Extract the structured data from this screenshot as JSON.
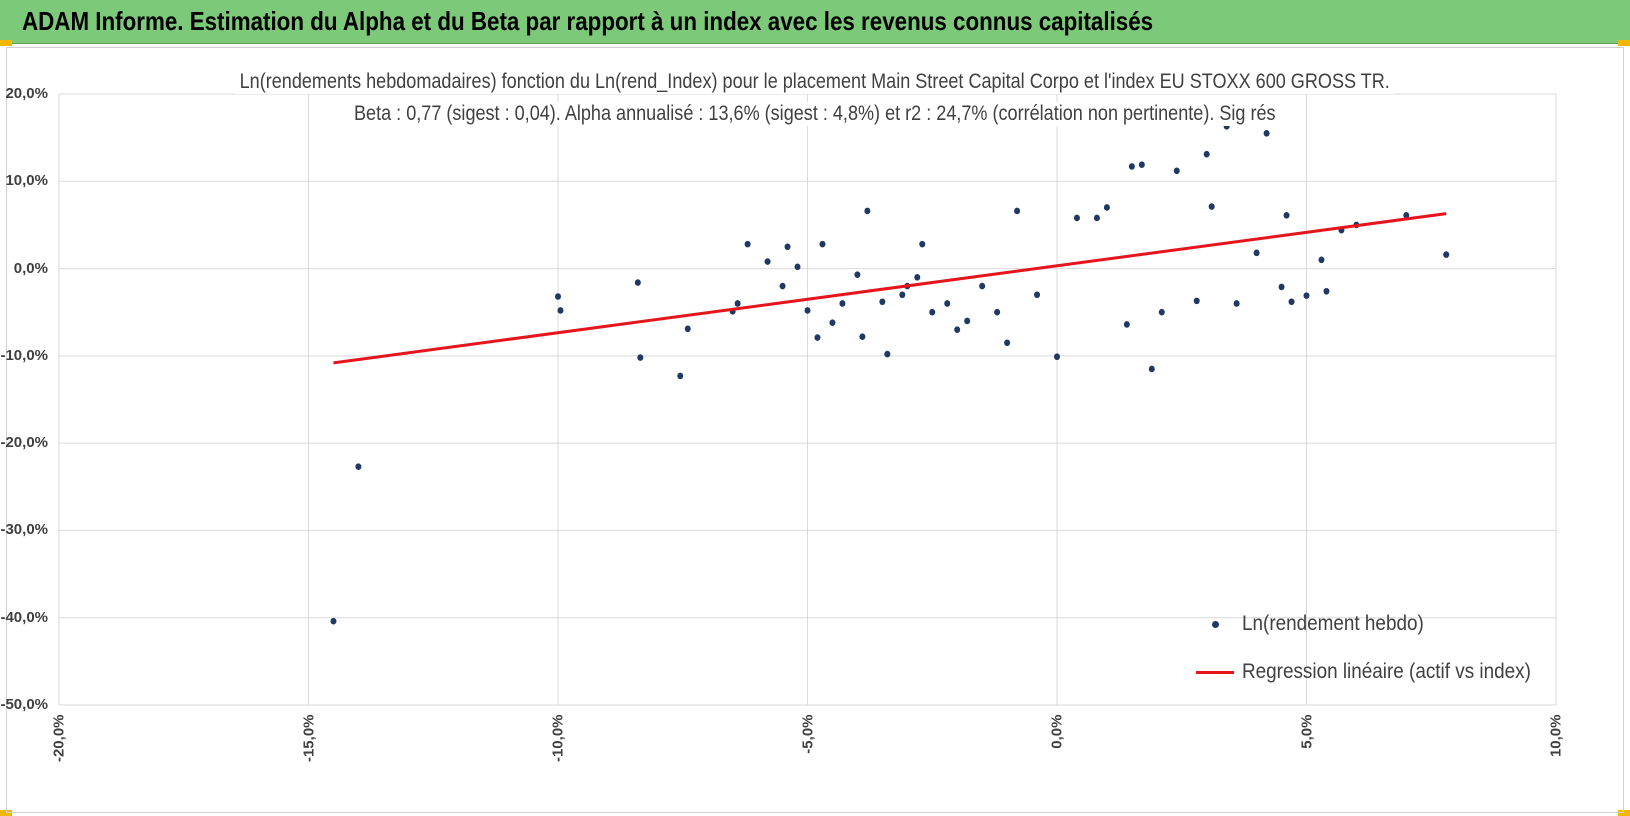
{
  "banner": {
    "title": "ADAM Informe. Estimation du Alpha et du Beta par rapport à un index avec les revenus connus capitalisés"
  },
  "colors": {
    "banner": "#7dc97a",
    "corner": "#f2b800",
    "points": "#203864",
    "regression": "#e8141b",
    "grid": "#d9d9d9"
  },
  "chart_data": {
    "type": "scatter",
    "title": "Ln(rendements hebdomadaires) fonction du Ln(rend_Index) pour le placement Main Street Capital Corpo et l'index EU STOXX 600 GROSS TR.",
    "subtitle": "Beta : 0,77 (sigest : 0,04). Alpha annualisé : 13,6% (sigest : 4,8%) et r2 : 24,7% (corrélation non pertinente). Sig rés",
    "xlabel": "",
    "ylabel": "",
    "xlim": [
      -0.2,
      0.1
    ],
    "ylim": [
      -0.5,
      0.2
    ],
    "grid": true,
    "legend_position": "bottom-right",
    "x_tick_labels": [
      "-20,0%",
      "-15,0%",
      "-10,0%",
      "-5,0%",
      "0,0%",
      "5,0%",
      "10,0%"
    ],
    "x_ticks": [
      -0.2,
      -0.15,
      -0.1,
      -0.05,
      0.0,
      0.05,
      0.1
    ],
    "y_tick_labels": [
      "20,0%",
      "10,0%",
      "0,0%",
      "-10,0%",
      "-20,0%",
      "-30,0%",
      "-40,0%",
      "-50,0%"
    ],
    "y_ticks": [
      0.2,
      0.1,
      0.0,
      -0.1,
      -0.2,
      -0.3,
      -0.4,
      -0.5
    ],
    "series": [
      {
        "name": "Ln(rendement hebdo)",
        "kind": "scatter",
        "x": [
          -0.145,
          -0.14,
          -0.1,
          -0.0995,
          -0.084,
          -0.0835,
          -0.0755,
          -0.074,
          -0.065,
          -0.064,
          -0.062,
          -0.058,
          -0.055,
          -0.054,
          -0.052,
          -0.05,
          -0.048,
          -0.047,
          -0.045,
          -0.043,
          -0.04,
          -0.039,
          -0.038,
          -0.035,
          -0.034,
          -0.031,
          -0.03,
          -0.028,
          -0.027,
          -0.025,
          -0.022,
          -0.02,
          -0.018,
          -0.015,
          -0.012,
          -0.01,
          -0.008,
          -0.004,
          0.0,
          0.004,
          0.008,
          0.01,
          0.014,
          0.015,
          0.017,
          0.019,
          0.021,
          0.024,
          0.028,
          0.03,
          0.031,
          0.034,
          0.036,
          0.04,
          0.042,
          0.045,
          0.046,
          0.047,
          0.05,
          0.053,
          0.054,
          0.057,
          0.06,
          0.07,
          0.078
        ],
        "y": [
          -0.404,
          -0.227,
          -0.032,
          -0.048,
          -0.016,
          -0.102,
          -0.123,
          -0.069,
          -0.049,
          -0.04,
          0.028,
          0.008,
          -0.02,
          0.025,
          0.002,
          -0.048,
          -0.079,
          0.028,
          -0.062,
          -0.04,
          -0.007,
          -0.078,
          0.066,
          -0.038,
          -0.098,
          -0.03,
          -0.02,
          -0.01,
          0.028,
          -0.05,
          -0.04,
          -0.07,
          -0.06,
          -0.02,
          -0.05,
          -0.085,
          0.066,
          -0.03,
          -0.101,
          0.058,
          0.058,
          0.07,
          -0.064,
          0.117,
          0.119,
          -0.115,
          -0.05,
          0.112,
          -0.037,
          0.131,
          0.071,
          0.163,
          -0.04,
          0.018,
          0.155,
          -0.021,
          0.061,
          -0.038,
          -0.031,
          0.01,
          -0.026,
          0.044,
          0.05,
          0.061,
          0.016
        ]
      },
      {
        "name": "Regression linéaire (actif vs index)",
        "kind": "line",
        "x": [
          -0.145,
          0.078
        ],
        "y": [
          -0.108,
          0.063
        ]
      }
    ]
  }
}
